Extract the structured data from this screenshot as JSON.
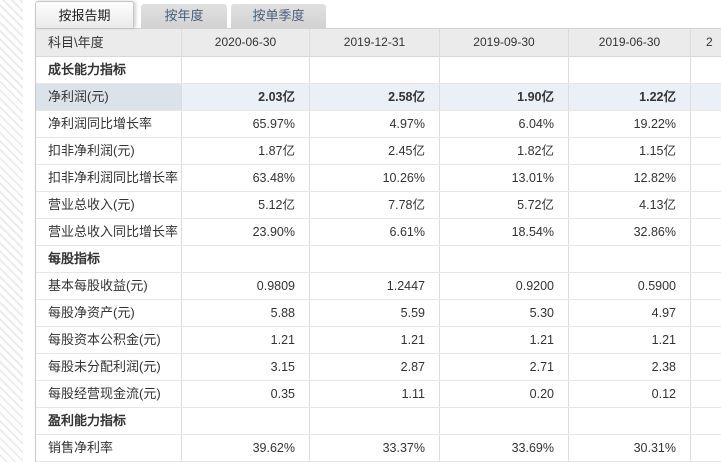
{
  "tabs": [
    {
      "label": "按报告期",
      "active": true
    },
    {
      "label": "按年度",
      "active": false
    },
    {
      "label": "按单季度",
      "active": false
    }
  ],
  "table": {
    "header": {
      "label_col": "科目\\年度",
      "date_cols": [
        "2020-06-30",
        "2019-12-31",
        "2019-09-30",
        "2019-06-30"
      ],
      "partial_col": "2"
    },
    "rows": [
      {
        "type": "section",
        "label": "成长能力指标"
      },
      {
        "type": "data",
        "label": "净利润(元)",
        "highlighted": true,
        "values": [
          "2.03亿",
          "2.58亿",
          "1.90亿",
          "1.22亿"
        ]
      },
      {
        "type": "data",
        "label": "净利润同比增长率",
        "values": [
          "65.97%",
          "4.97%",
          "6.04%",
          "19.22%"
        ]
      },
      {
        "type": "data",
        "label": "扣非净利润(元)",
        "values": [
          "1.87亿",
          "2.45亿",
          "1.82亿",
          "1.15亿"
        ]
      },
      {
        "type": "data",
        "label": "扣非净利润同比增长率",
        "values": [
          "63.48%",
          "10.26%",
          "13.01%",
          "12.82%"
        ]
      },
      {
        "type": "data",
        "label": "营业总收入(元)",
        "values": [
          "5.12亿",
          "7.78亿",
          "5.72亿",
          "4.13亿"
        ]
      },
      {
        "type": "data",
        "label": "营业总收入同比增长率",
        "values": [
          "23.90%",
          "6.61%",
          "18.54%",
          "32.86%"
        ]
      },
      {
        "type": "section",
        "label": "每股指标"
      },
      {
        "type": "data",
        "label": "基本每股收益(元)",
        "values": [
          "0.9809",
          "1.2447",
          "0.9200",
          "0.5900"
        ]
      },
      {
        "type": "data",
        "label": "每股净资产(元)",
        "values": [
          "5.88",
          "5.59",
          "5.30",
          "4.97"
        ]
      },
      {
        "type": "data",
        "label": "每股资本公积金(元)",
        "values": [
          "1.21",
          "1.21",
          "1.21",
          "1.21"
        ]
      },
      {
        "type": "data",
        "label": "每股未分配利润(元)",
        "values": [
          "3.15",
          "2.87",
          "2.71",
          "2.38"
        ]
      },
      {
        "type": "data",
        "label": "每股经营现金流(元)",
        "values": [
          "0.35",
          "1.11",
          "0.20",
          "0.12"
        ]
      },
      {
        "type": "section",
        "label": "盈利能力指标"
      },
      {
        "type": "data",
        "label": "销售净利率",
        "values": [
          "39.62%",
          "33.37%",
          "33.69%",
          "30.31%"
        ]
      }
    ]
  },
  "colors": {
    "header_bg": "#ebebeb",
    "highlight_label_bg": "#dbe2ea",
    "highlight_value_bg": "#eaf0f6",
    "tab_active_text": "#1f1f1f",
    "tab_inactive_text": "#46617c",
    "text": "#333333"
  }
}
